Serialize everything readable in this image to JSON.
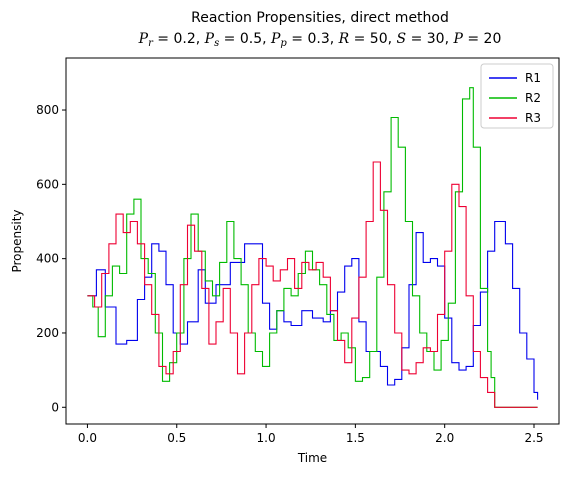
{
  "chart_data": {
    "type": "line",
    "title_line1": "Reaction Propensities, direct method",
    "title_line2": "P_r = 0.2, P_s = 0.5, P_p = 0.3, R = 50, S = 30, P = 20",
    "title_parts": [
      {
        "sym": "P",
        "sub": "r",
        "val": "0.2"
      },
      {
        "sym": "P",
        "sub": "s",
        "val": "0.5"
      },
      {
        "sym": "P",
        "sub": "p",
        "val": "0.3"
      },
      {
        "sym": "R",
        "sub": "",
        "val": "50"
      },
      {
        "sym": "S",
        "sub": "",
        "val": "30"
      },
      {
        "sym": "P",
        "sub": "",
        "val": "20"
      }
    ],
    "xlabel": "Time",
    "ylabel": "Propensity",
    "xlim": [
      -0.12,
      2.64
    ],
    "ylim": [
      -45,
      940
    ],
    "xticks": [
      0.0,
      0.5,
      1.0,
      1.5,
      2.0,
      2.5
    ],
    "xtick_labels": [
      "0.0",
      "0.5",
      "1.0",
      "1.5",
      "2.0",
      "2.5"
    ],
    "yticks": [
      0,
      200,
      400,
      600,
      800
    ],
    "ytick_labels": [
      "0",
      "200",
      "400",
      "600",
      "800"
    ],
    "legend_position": "top-right",
    "grid": false,
    "series": [
      {
        "name": "R1",
        "color": "#0000ee",
        "x": [
          0.0,
          0.05,
          0.1,
          0.16,
          0.22,
          0.28,
          0.32,
          0.36,
          0.4,
          0.44,
          0.48,
          0.52,
          0.56,
          0.62,
          0.66,
          0.72,
          0.8,
          0.88,
          0.94,
          0.98,
          1.02,
          1.06,
          1.1,
          1.14,
          1.2,
          1.26,
          1.32,
          1.36,
          1.4,
          1.44,
          1.48,
          1.52,
          1.56,
          1.6,
          1.64,
          1.68,
          1.72,
          1.76,
          1.8,
          1.84,
          1.88,
          1.92,
          1.96,
          2.0,
          2.04,
          2.08,
          2.12,
          2.16,
          2.2,
          2.24,
          2.28,
          2.3,
          2.34,
          2.38,
          2.42,
          2.46,
          2.5,
          2.52
        ],
        "y": [
          300,
          370,
          270,
          170,
          180,
          290,
          350,
          440,
          420,
          330,
          200,
          170,
          230,
          370,
          280,
          330,
          390,
          440,
          440,
          280,
          210,
          260,
          230,
          220,
          260,
          240,
          230,
          260,
          310,
          380,
          400,
          230,
          150,
          150,
          110,
          60,
          75,
          160,
          330,
          470,
          390,
          400,
          380,
          240,
          120,
          100,
          110,
          220,
          310,
          420,
          500,
          500,
          440,
          320,
          200,
          130,
          40,
          20
        ]
      },
      {
        "name": "R2",
        "color": "#00bb00",
        "x": [
          0.0,
          0.03,
          0.06,
          0.1,
          0.14,
          0.18,
          0.22,
          0.26,
          0.3,
          0.34,
          0.38,
          0.42,
          0.46,
          0.5,
          0.54,
          0.58,
          0.62,
          0.66,
          0.7,
          0.74,
          0.78,
          0.82,
          0.86,
          0.9,
          0.94,
          0.98,
          1.02,
          1.06,
          1.1,
          1.14,
          1.18,
          1.22,
          1.26,
          1.3,
          1.34,
          1.38,
          1.42,
          1.46,
          1.5,
          1.54,
          1.58,
          1.62,
          1.66,
          1.7,
          1.74,
          1.78,
          1.82,
          1.86,
          1.9,
          1.94,
          1.98,
          2.02,
          2.06,
          2.1,
          2.14,
          2.16,
          2.2,
          2.24,
          2.26,
          2.28,
          2.5,
          2.52
        ],
        "y": [
          300,
          270,
          190,
          300,
          380,
          360,
          520,
          560,
          400,
          360,
          200,
          70,
          120,
          200,
          400,
          520,
          420,
          340,
          300,
          390,
          500,
          400,
          330,
          200,
          150,
          110,
          200,
          260,
          320,
          300,
          360,
          420,
          370,
          330,
          250,
          180,
          200,
          160,
          70,
          80,
          150,
          350,
          580,
          780,
          700,
          500,
          300,
          200,
          150,
          100,
          180,
          280,
          580,
          830,
          860,
          700,
          320,
          150,
          80,
          0,
          0,
          0
        ]
      },
      {
        "name": "R3",
        "color": "#ee0033",
        "x": [
          0.0,
          0.04,
          0.08,
          0.12,
          0.16,
          0.2,
          0.24,
          0.28,
          0.32,
          0.36,
          0.4,
          0.44,
          0.48,
          0.52,
          0.56,
          0.6,
          0.64,
          0.68,
          0.72,
          0.76,
          0.8,
          0.84,
          0.88,
          0.92,
          0.96,
          1.0,
          1.04,
          1.08,
          1.12,
          1.16,
          1.2,
          1.24,
          1.28,
          1.32,
          1.36,
          1.4,
          1.44,
          1.48,
          1.52,
          1.56,
          1.6,
          1.64,
          1.68,
          1.72,
          1.76,
          1.8,
          1.84,
          1.88,
          1.92,
          1.96,
          2.0,
          2.04,
          2.08,
          2.12,
          2.16,
          2.2,
          2.24,
          2.28,
          2.5,
          2.52
        ],
        "y": [
          300,
          270,
          360,
          440,
          520,
          470,
          500,
          440,
          330,
          250,
          110,
          90,
          150,
          330,
          490,
          420,
          320,
          170,
          230,
          320,
          200,
          90,
          200,
          330,
          400,
          380,
          340,
          370,
          400,
          320,
          390,
          370,
          390,
          350,
          260,
          180,
          120,
          240,
          350,
          500,
          660,
          530,
          330,
          200,
          100,
          90,
          120,
          160,
          150,
          250,
          420,
          600,
          540,
          300,
          150,
          80,
          40,
          0,
          0,
          0
        ]
      }
    ]
  }
}
